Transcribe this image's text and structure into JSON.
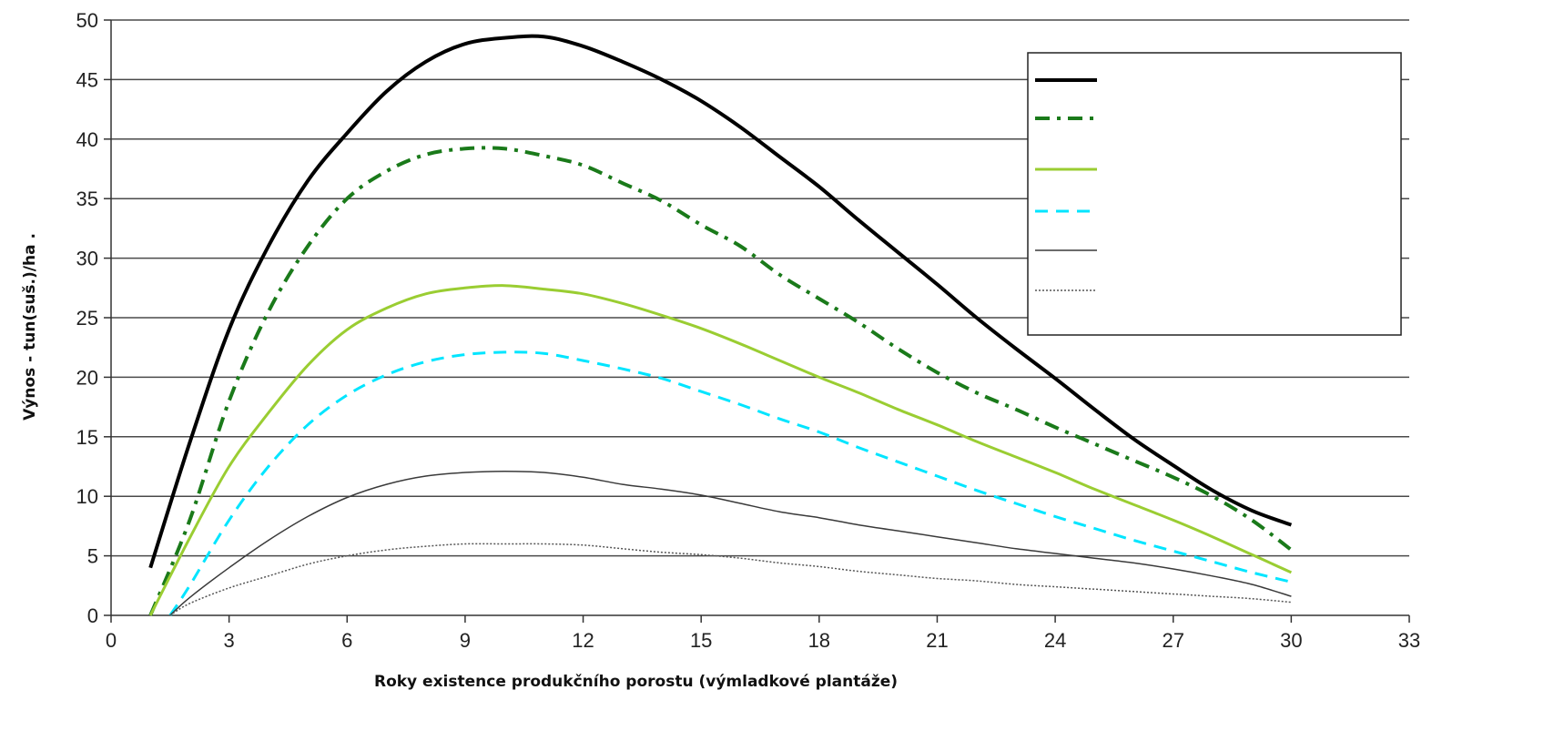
{
  "chart_data": {
    "type": "line",
    "title": "",
    "xlabel": "Roky existence produkčního porostu (výmladkové plantáže)",
    "ylabel": "Výnos - tun(suš.)/ha .",
    "xlim": [
      0,
      33
    ],
    "ylim": [
      0,
      50
    ],
    "x_ticks": [
      "0",
      "3",
      "6",
      "9",
      "12",
      "15",
      "18",
      "21",
      "24",
      "27",
      "30",
      "33"
    ],
    "y_ticks": [
      "0",
      "5",
      "10",
      "15",
      "20",
      "25",
      "30",
      "35",
      "40",
      "45",
      "50"
    ],
    "grid": "horizontal",
    "legend_position": "top-right",
    "series": [
      {
        "color": "#000000",
        "style": "solid-thick",
        "x": [
          1,
          2,
          3,
          4,
          5,
          6,
          7,
          8,
          9,
          10,
          11,
          12,
          13,
          14,
          15,
          16,
          17,
          18,
          19,
          20,
          21,
          22,
          23,
          24,
          25,
          26,
          27,
          28,
          29,
          30
        ],
        "values": [
          4,
          14.5,
          24,
          31,
          36.5,
          40.5,
          44,
          46.5,
          48,
          48.5,
          48.6,
          47.8,
          46.5,
          45,
          43.2,
          41,
          38.5,
          36,
          33.2,
          30.5,
          27.8,
          25,
          22.4,
          19.9,
          17.3,
          14.8,
          12.6,
          10.5,
          8.8,
          7.6
        ]
      },
      {
        "color": "#1a7a1a",
        "style": "dash-dot",
        "x": [
          1,
          2,
          3,
          4,
          5,
          6,
          7,
          8,
          9,
          10,
          11,
          12,
          13,
          14,
          15,
          16,
          17,
          18,
          19,
          20,
          21,
          22,
          23,
          24,
          25,
          26,
          27,
          28,
          29,
          30
        ],
        "values": [
          0,
          8,
          18,
          25.5,
          31,
          35,
          37.3,
          38.7,
          39.2,
          39.2,
          38.6,
          37.8,
          36.3,
          34.8,
          32.8,
          31,
          28.6,
          26.6,
          24.6,
          22.4,
          20.4,
          18.7,
          17.3,
          15.8,
          14.4,
          13,
          11.6,
          10,
          8,
          5.5
        ]
      },
      {
        "color": "#9acd32",
        "style": "solid",
        "x": [
          1,
          2,
          3,
          4,
          5,
          6,
          7,
          8,
          9,
          10,
          11,
          12,
          13,
          14,
          15,
          16,
          17,
          18,
          19,
          20,
          21,
          22,
          23,
          24,
          25,
          26,
          27,
          28,
          29,
          30
        ],
        "values": [
          0,
          6.5,
          12.5,
          17,
          21,
          24,
          25.8,
          27,
          27.5,
          27.7,
          27.4,
          27,
          26.2,
          25.2,
          24.1,
          22.8,
          21.4,
          20,
          18.7,
          17.3,
          16,
          14.6,
          13.3,
          12,
          10.6,
          9.3,
          8,
          6.6,
          5.1,
          3.6
        ]
      },
      {
        "color": "#00e5ff",
        "style": "dashed",
        "x": [
          1.5,
          2,
          3,
          4,
          5,
          6,
          7,
          8,
          9,
          10,
          11,
          12,
          13,
          14,
          15,
          16,
          17,
          18,
          19,
          20,
          21,
          22,
          23,
          24,
          25,
          26,
          27,
          28,
          29,
          30
        ],
        "values": [
          0,
          2.5,
          8,
          12.5,
          16,
          18.5,
          20.2,
          21.3,
          21.9,
          22.1,
          22,
          21.4,
          20.7,
          19.9,
          18.8,
          17.7,
          16.5,
          15.4,
          14.1,
          12.9,
          11.7,
          10.5,
          9.4,
          8.3,
          7.3,
          6.3,
          5.4,
          4.5,
          3.6,
          2.8
        ]
      },
      {
        "color": "#3a3a3a",
        "style": "solid-thin",
        "x": [
          1.5,
          2,
          3,
          4,
          5,
          6,
          7,
          8,
          9,
          10,
          11,
          12,
          13,
          14,
          15,
          16,
          17,
          18,
          19,
          20,
          21,
          22,
          23,
          24,
          25,
          26,
          27,
          28,
          29,
          30
        ],
        "values": [
          0,
          1.5,
          4,
          6.3,
          8.3,
          9.9,
          11,
          11.7,
          12,
          12.1,
          12,
          11.6,
          11,
          10.6,
          10.1,
          9.4,
          8.7,
          8.2,
          7.6,
          7.1,
          6.6,
          6.1,
          5.6,
          5.2,
          4.8,
          4.4,
          3.9,
          3.3,
          2.6,
          1.6
        ]
      },
      {
        "color": "#555555",
        "style": "dotted",
        "x": [
          1.5,
          2,
          3,
          4,
          5,
          6,
          7,
          8,
          9,
          10,
          11,
          12,
          13,
          14,
          15,
          16,
          17,
          18,
          19,
          20,
          21,
          22,
          23,
          24,
          25,
          26,
          27,
          28,
          29,
          30
        ],
        "values": [
          0,
          1,
          2.3,
          3.3,
          4.3,
          5,
          5.5,
          5.8,
          6,
          6,
          6,
          5.9,
          5.6,
          5.3,
          5.1,
          4.8,
          4.4,
          4.1,
          3.7,
          3.4,
          3.1,
          2.9,
          2.6,
          2.4,
          2.2,
          2,
          1.8,
          1.6,
          1.4,
          1.1
        ]
      }
    ]
  }
}
